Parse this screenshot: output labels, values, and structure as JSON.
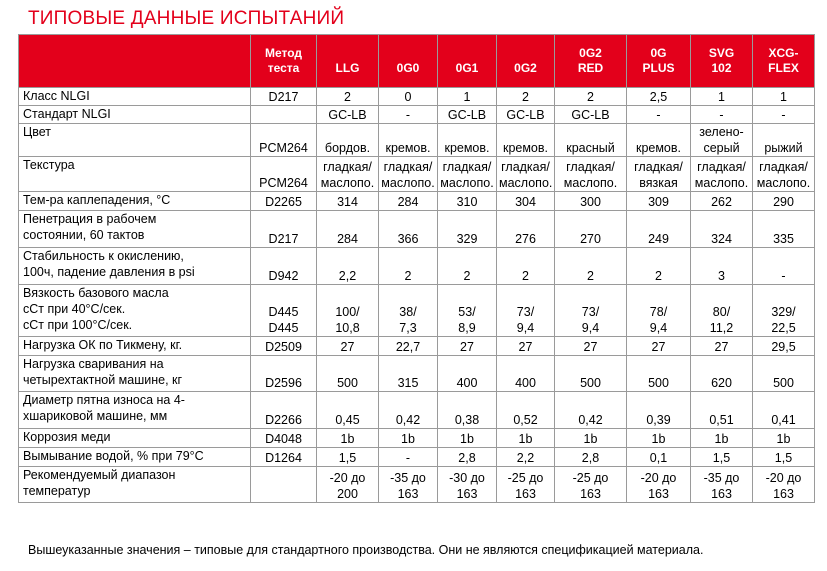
{
  "title": "ТИПОВЫЕ ДАННЫЕ ИСПЫТАНИЙ",
  "header": {
    "method": [
      "Метод",
      "теста"
    ],
    "products": [
      [
        "LLG"
      ],
      [
        "0G0"
      ],
      [
        "0G1"
      ],
      [
        "0G2"
      ],
      [
        "0G2",
        "RED"
      ],
      [
        "0G",
        "PLUS"
      ],
      [
        "SVG",
        "102"
      ],
      [
        "XCG-",
        "FLEX"
      ]
    ]
  },
  "rows": [
    {
      "param": [
        "Класс NLGI"
      ],
      "method": [
        "D217"
      ],
      "values": [
        [
          "2"
        ],
        [
          "0"
        ],
        [
          "1"
        ],
        [
          "2"
        ],
        [
          "2"
        ],
        [
          "2,5"
        ],
        [
          "1"
        ],
        [
          "1"
        ]
      ]
    },
    {
      "param": [
        "Стандарт NLGI"
      ],
      "method": [
        ""
      ],
      "values": [
        [
          "GC-LB"
        ],
        [
          "-"
        ],
        [
          "GC-LB"
        ],
        [
          "GC-LB"
        ],
        [
          "GC-LB"
        ],
        [
          "-"
        ],
        [
          "-"
        ],
        [
          "-"
        ]
      ]
    },
    {
      "param": [
        "Цвет",
        ""
      ],
      "method": [
        "",
        "PCM264"
      ],
      "values": [
        [
          "",
          "бордов."
        ],
        [
          "",
          "кремов."
        ],
        [
          "",
          "кремов."
        ],
        [
          "",
          "кремов."
        ],
        [
          "",
          "красный"
        ],
        [
          "",
          "кремов."
        ],
        [
          "зелено-",
          "серый"
        ],
        [
          "",
          "рыжий"
        ]
      ]
    },
    {
      "param": [
        "Текстура",
        ""
      ],
      "method": [
        "",
        "PCM264"
      ],
      "values": [
        [
          "гладкая/",
          "маслопо."
        ],
        [
          "гладкая/",
          "маслопо."
        ],
        [
          "гладкая/",
          "маслопо."
        ],
        [
          "гладкая/",
          "маслопо."
        ],
        [
          "гладкая/",
          "маслопо."
        ],
        [
          "гладкая/",
          "вязкая"
        ],
        [
          "гладкая/",
          "маслопо."
        ],
        [
          "гладкая/",
          "маслопо."
        ]
      ]
    },
    {
      "param": [
        "Тем-ра каплепадения, °C"
      ],
      "method": [
        "D2265"
      ],
      "values": [
        [
          "314"
        ],
        [
          "284"
        ],
        [
          "310"
        ],
        [
          "304"
        ],
        [
          "300"
        ],
        [
          "309"
        ],
        [
          "262"
        ],
        [
          "290"
        ]
      ]
    },
    {
      "param": [
        "Пенетрация в рабочем",
        "состоянии, 60 тактов"
      ],
      "method": [
        "",
        "D217"
      ],
      "values": [
        [
          "",
          "284"
        ],
        [
          "",
          "366"
        ],
        [
          "",
          "329"
        ],
        [
          "",
          "276"
        ],
        [
          "",
          "270"
        ],
        [
          "",
          "249"
        ],
        [
          "",
          "324"
        ],
        [
          "",
          "335"
        ]
      ]
    },
    {
      "param": [
        "Стабильность к окислению,",
        "100ч, падение давления в psi"
      ],
      "method": [
        "",
        "D942"
      ],
      "values": [
        [
          "",
          "2,2"
        ],
        [
          "",
          "2"
        ],
        [
          "",
          "2"
        ],
        [
          "",
          "2"
        ],
        [
          "",
          "2"
        ],
        [
          "",
          "2"
        ],
        [
          "",
          "3"
        ],
        [
          "",
          "-"
        ]
      ]
    },
    {
      "param": [
        "Вязкость базового масла",
        "сСт при 40°C/сек.",
        "сСт при 100°C/сек."
      ],
      "method": [
        "",
        "D445",
        "D445"
      ],
      "values": [
        [
          "",
          "100/",
          "10,8"
        ],
        [
          "",
          "38/",
          "7,3"
        ],
        [
          "",
          "53/",
          "8,9"
        ],
        [
          "",
          "73/",
          "9,4"
        ],
        [
          "",
          "73/",
          "9,4"
        ],
        [
          "",
          "78/",
          "9,4"
        ],
        [
          "",
          "80/",
          "11,2"
        ],
        [
          "",
          "329/",
          "22,5"
        ]
      ]
    },
    {
      "param": [
        "Нагрузка ОК по Тикмену, кг."
      ],
      "method": [
        "D2509"
      ],
      "values": [
        [
          "27"
        ],
        [
          "22,7"
        ],
        [
          "27"
        ],
        [
          "27"
        ],
        [
          "27"
        ],
        [
          "27"
        ],
        [
          "27"
        ],
        [
          "29,5"
        ]
      ]
    },
    {
      "param": [
        "Нагрузка сваривания на",
        "четырехтактной машине, кг"
      ],
      "method": [
        "",
        "D2596"
      ],
      "values": [
        [
          "",
          "500"
        ],
        [
          "",
          "315"
        ],
        [
          "",
          "400"
        ],
        [
          "",
          "400"
        ],
        [
          "",
          "500"
        ],
        [
          "",
          "500"
        ],
        [
          "",
          "620"
        ],
        [
          "",
          "500"
        ]
      ]
    },
    {
      "param": [
        "Диаметр пятна износа на 4-",
        "хшариковой машине, мм"
      ],
      "method": [
        "",
        "D2266"
      ],
      "values": [
        [
          "",
          "0,45"
        ],
        [
          "",
          "0,42"
        ],
        [
          "",
          "0,38"
        ],
        [
          "",
          "0,52"
        ],
        [
          "",
          "0,42"
        ],
        [
          "",
          "0,39"
        ],
        [
          "",
          "0,51"
        ],
        [
          "",
          "0,41"
        ]
      ]
    },
    {
      "param": [
        "Коррозия меди"
      ],
      "method": [
        "D4048"
      ],
      "values": [
        [
          "1b"
        ],
        [
          "1b"
        ],
        [
          "1b"
        ],
        [
          "1b"
        ],
        [
          "1b"
        ],
        [
          "1b"
        ],
        [
          "1b"
        ],
        [
          "1b"
        ]
      ]
    },
    {
      "param": [
        "Вымывание водой, % при 79°C"
      ],
      "method": [
        "D1264"
      ],
      "values": [
        [
          "1,5"
        ],
        [
          "-"
        ],
        [
          "2,8"
        ],
        [
          "2,2"
        ],
        [
          "2,8"
        ],
        [
          "0,1"
        ],
        [
          "1,5"
        ],
        [
          "1,5"
        ]
      ]
    },
    {
      "param": [
        "Рекомендуемый диапазон",
        "температур"
      ],
      "method": [
        "",
        ""
      ],
      "values": [
        [
          "-20 до",
          "200"
        ],
        [
          "-35 до",
          "163"
        ],
        [
          "-30 до",
          "163"
        ],
        [
          "-25 до",
          "163"
        ],
        [
          "-25 до",
          "163"
        ],
        [
          "-20 до",
          "163"
        ],
        [
          "-35 до",
          "163"
        ],
        [
          "-20 до",
          "163"
        ]
      ]
    }
  ],
  "footnote": "Вышеуказанные значения – типовые для стандартного производства. Они не являются спецификацией материала.",
  "colors": {
    "accent": "#e3001b",
    "header_text": "#ffffff",
    "grid": "#9a9a9a"
  }
}
